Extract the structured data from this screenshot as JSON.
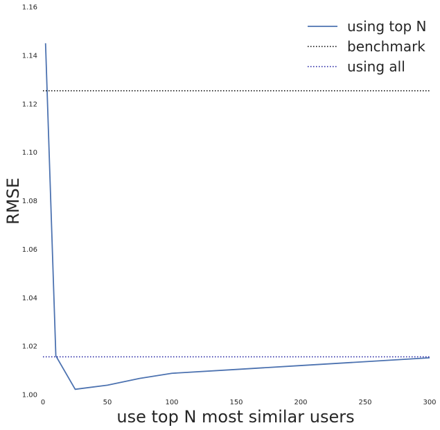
{
  "chart_data": {
    "type": "line",
    "title": "",
    "xlabel": "use top N most similar users",
    "ylabel": "RMSE",
    "xlim": [
      0,
      300
    ],
    "ylim": [
      1.0,
      1.16
    ],
    "x_ticks": [
      0,
      50,
      100,
      150,
      200,
      250,
      300
    ],
    "y_ticks": [
      1.0,
      1.02,
      1.04,
      1.06,
      1.08,
      1.1,
      1.12,
      1.14,
      1.16
    ],
    "x_tick_labels": [
      "0",
      "50",
      "100",
      "150",
      "200",
      "250",
      "300"
    ],
    "y_tick_labels": [
      "1.00",
      "1.02",
      "1.04",
      "1.06",
      "1.08",
      "1.10",
      "1.12",
      "1.14",
      "1.16"
    ],
    "grid": false,
    "legend_position": "top-right",
    "series": [
      {
        "name": "using top N",
        "style": "solid",
        "color": "#4c72b0",
        "x": [
          2,
          10,
          25,
          50,
          75,
          100,
          150,
          200,
          250,
          300
        ],
        "y": [
          1.145,
          1.016,
          1.0022,
          1.0039,
          1.0067,
          1.0088,
          1.0104,
          1.012,
          1.0136,
          1.0152
        ]
      },
      {
        "name": "benchmark",
        "style": "dotted",
        "color": "#000000",
        "hline": 1.1254
      },
      {
        "name": "using all",
        "style": "dotted",
        "color": "#1a1aa0",
        "hline": 1.0156
      }
    ]
  }
}
